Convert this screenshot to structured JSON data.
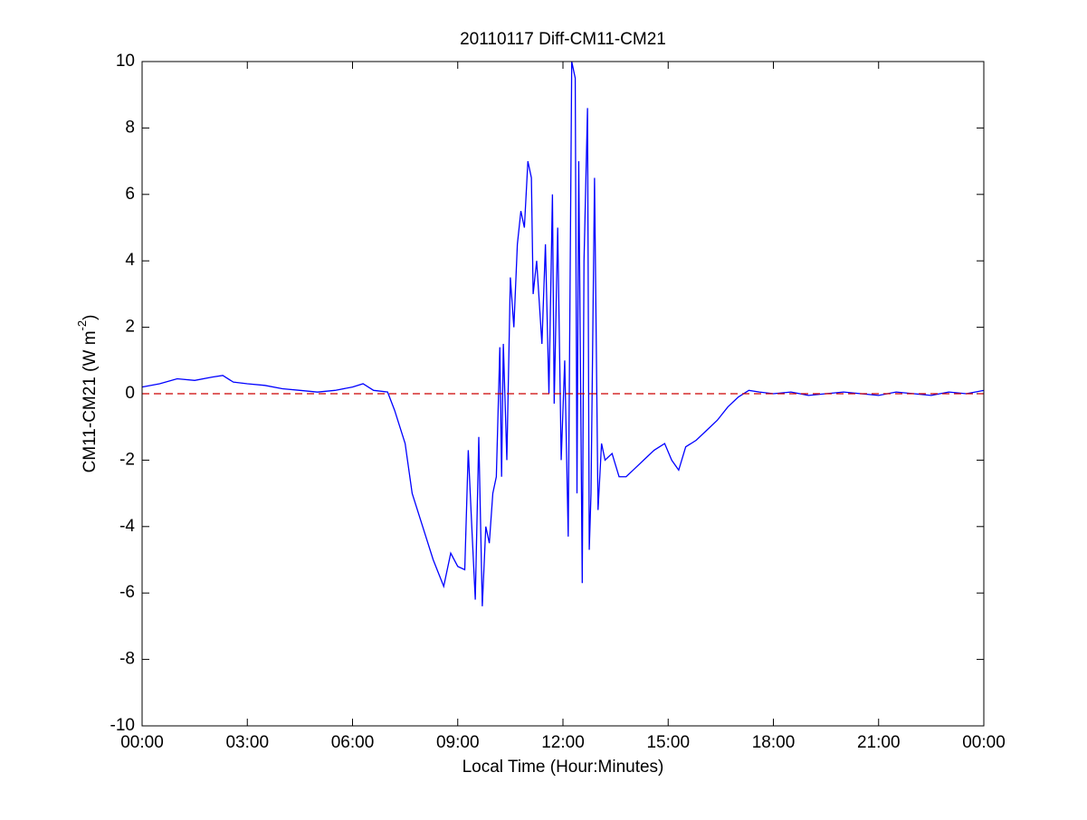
{
  "chart_data": {
    "type": "line",
    "title": "20110117 Diff-CM11-CM21",
    "x_label": "Local Time (Hour:Minutes)",
    "y_label": "CM11-CM21 (W m",
    "y_label_sup": "-2",
    "y_label_end": ")",
    "x": [
      0,
      0.5,
      1,
      1.5,
      2,
      2.3,
      2.6,
      3,
      3.5,
      4,
      4.5,
      5,
      5.5,
      6,
      6.3,
      6.6,
      7,
      7.2,
      7.5,
      7.7,
      8,
      8.3,
      8.6,
      8.8,
      9,
      9.2,
      9.3,
      9.4,
      9.5,
      9.6,
      9.7,
      9.8,
      9.9,
      10,
      10.1,
      10.2,
      10.25,
      10.3,
      10.4,
      10.5,
      10.6,
      10.7,
      10.8,
      10.9,
      11,
      11.1,
      11.15,
      11.25,
      11.4,
      11.5,
      11.6,
      11.7,
      11.75,
      11.85,
      11.95,
      12.05,
      12.15,
      12.25,
      12.35,
      12.4,
      12.45,
      12.55,
      12.6,
      12.7,
      12.75,
      12.8,
      12.9,
      13,
      13.1,
      13.2,
      13.4,
      13.6,
      13.8,
      14,
      14.3,
      14.6,
      14.9,
      15.1,
      15.3,
      15.5,
      15.8,
      16.1,
      16.4,
      16.7,
      17,
      17.3,
      17.6,
      18,
      18.5,
      19,
      19.5,
      20,
      20.5,
      21,
      21.5,
      22,
      22.5,
      23,
      23.5,
      24
    ],
    "series": [
      {
        "name": "Diff-CM11-CM21",
        "color": "#0000ff",
        "values": [
          0.2,
          0.3,
          0.45,
          0.4,
          0.5,
          0.55,
          0.35,
          0.3,
          0.25,
          0.15,
          0.1,
          0.05,
          0.1,
          0.2,
          0.3,
          0.1,
          0.05,
          -0.5,
          -1.5,
          -3,
          -4,
          -5,
          -5.8,
          -4.8,
          -5.2,
          -5.3,
          -1.7,
          -4,
          -6.2,
          -1.3,
          -6.4,
          -4,
          -4.5,
          -3,
          -2.5,
          1.4,
          -2.5,
          1.5,
          -2,
          3.5,
          2,
          4.5,
          5.5,
          5,
          7,
          6.5,
          3,
          4,
          1.5,
          4.5,
          0,
          6,
          -0.3,
          5,
          -2,
          1,
          -4.3,
          10,
          9.5,
          -3,
          7,
          -5.7,
          4,
          8.6,
          -4.7,
          -3,
          6.5,
          -3.5,
          -1.5,
          -2,
          -1.8,
          -2.5,
          -2.5,
          -2.3,
          -2,
          -1.7,
          -1.5,
          -2,
          -2.3,
          -1.6,
          -1.4,
          -1.1,
          -0.8,
          -0.4,
          -0.1,
          0.1,
          0.05,
          0,
          0.05,
          -0.05,
          0,
          0.05,
          0,
          -0.05,
          0.05,
          0,
          -0.05,
          0.05,
          0,
          0.1
        ]
      }
    ],
    "hline": 0,
    "hline_color": "#cc0000",
    "xlim": [
      0,
      24
    ],
    "xticks": [
      {
        "value": 0,
        "label": "00:00"
      },
      {
        "value": 3,
        "label": "03:00"
      },
      {
        "value": 6,
        "label": "06:00"
      },
      {
        "value": 9,
        "label": "09:00"
      },
      {
        "value": 12,
        "label": "12:00"
      },
      {
        "value": 15,
        "label": "15:00"
      },
      {
        "value": 18,
        "label": "18:00"
      },
      {
        "value": 21,
        "label": "21:00"
      },
      {
        "value": 24,
        "label": "00:00"
      }
    ],
    "ylim": [
      -10,
      10
    ],
    "yticks": [
      -10,
      -8,
      -6,
      -4,
      -2,
      0,
      2,
      4,
      6,
      8,
      10
    ],
    "grid": false
  }
}
